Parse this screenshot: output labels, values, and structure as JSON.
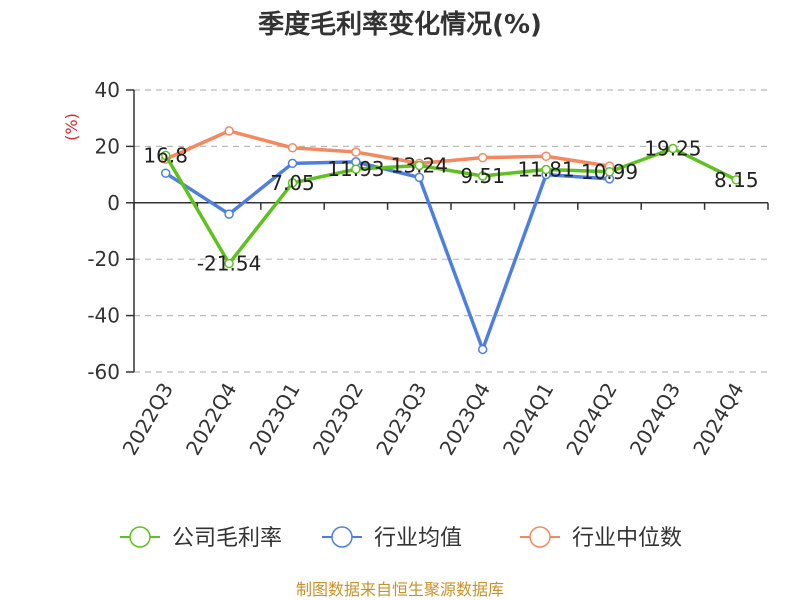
{
  "chart_data": {
    "type": "line",
    "title": "季度毛利率变化情况(%)",
    "ylabel": "(%)",
    "xlabel": "",
    "ylim": [
      -60,
      40
    ],
    "yticks": [
      40,
      20,
      0,
      -20,
      -40,
      -60
    ],
    "categories": [
      "2022Q3",
      "2022Q4",
      "2023Q1",
      "2023Q2",
      "2023Q3",
      "2023Q4",
      "2024Q1",
      "2024Q2",
      "2024Q3",
      "2024Q4"
    ],
    "grid": true,
    "legend_position": "bottom",
    "series": [
      {
        "name": "公司毛利率",
        "color": "#5fc11e",
        "values": [
          16.8,
          -21.54,
          7.05,
          11.93,
          13.24,
          9.51,
          11.81,
          10.99,
          19.25,
          8.15
        ],
        "labels": [
          "16.8",
          "-21.54",
          "7.05",
          "11.93",
          "13.24",
          "9.51",
          "11.81",
          "10.99",
          "19.25",
          "8.15"
        ]
      },
      {
        "name": "行业均值",
        "color": "#4e7fe0",
        "values": [
          10.5,
          -4,
          14,
          14.5,
          9,
          -52,
          10,
          8.5,
          null,
          null
        ]
      },
      {
        "name": "行业中位数",
        "color": "#f4895f",
        "values": [
          15.5,
          25.5,
          19.5,
          18,
          14,
          16,
          16.5,
          13,
          null,
          null
        ]
      }
    ]
  },
  "source": "制图数据来自恒生聚源数据库",
  "colors": {
    "title": "#333333",
    "ylabel": "#d9262b",
    "axis": "#333333",
    "grid": "#bbbbbb",
    "source": "#c8912a"
  }
}
